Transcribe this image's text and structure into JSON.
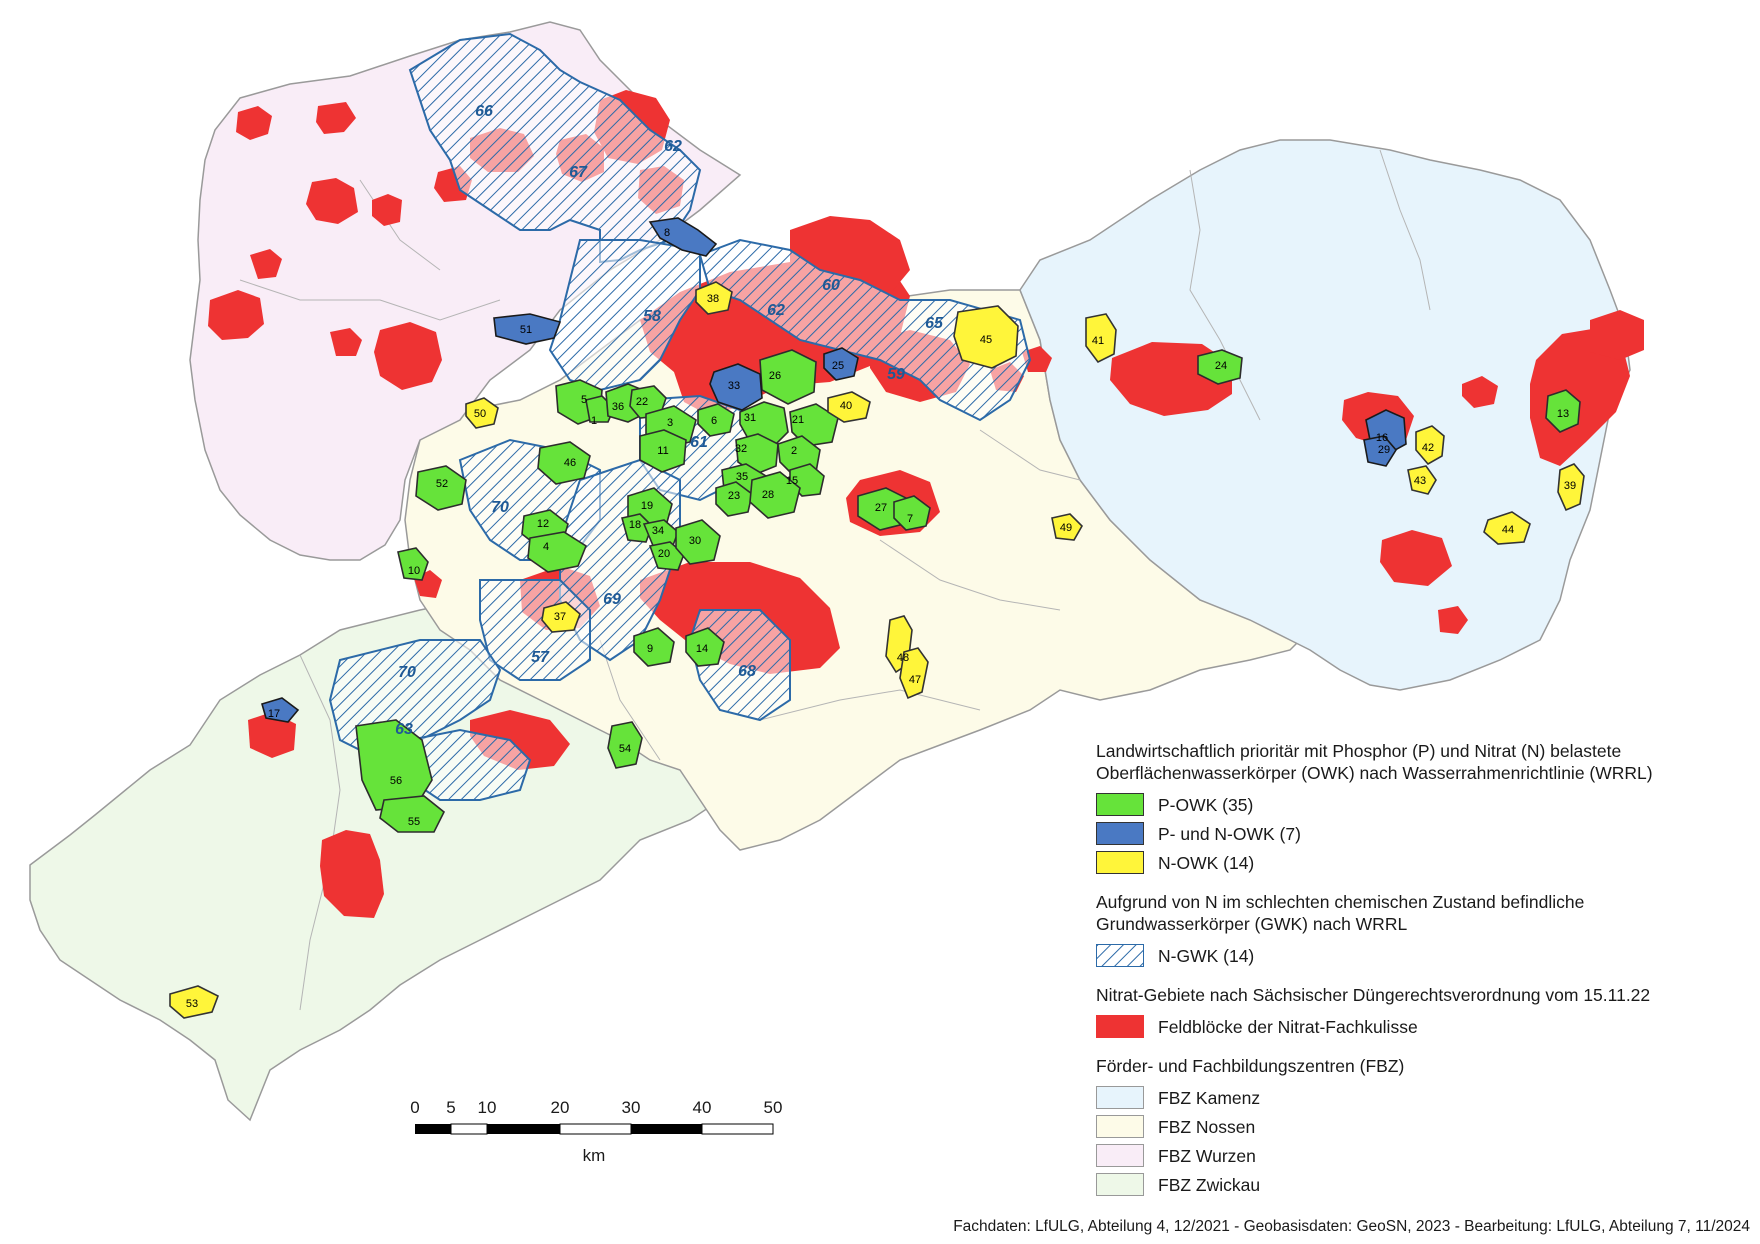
{
  "legend": {
    "owk_title": "Landwirtschaftlich prioritär mit Phosphor (P) und Nitrat (N) belastete Oberflächenwasserkörper (OWK) nach Wasserrahmenrichtlinie (WRRL)",
    "owk_items": [
      {
        "label": "P-OWK (35)",
        "color": "#66e33a"
      },
      {
        "label": "P- und N-OWK (7)",
        "color": "#4a79c3"
      },
      {
        "label": "N-OWK (14)",
        "color": "#fff53a"
      }
    ],
    "gwk_title": "Aufgrund von N im schlechten chemischen Zustand befindliche Grundwasserkörper (GWK) nach WRRL",
    "gwk_items": [
      {
        "label": "N-GWK (14)",
        "color": "#2c6aa8"
      }
    ],
    "nitrat_title": "Nitrat-Gebiete nach Sächsischer Düngerechtsverordnung vom 15.11.22",
    "nitrat_items": [
      {
        "label": "Feldblöcke der Nitrat-Fachkulisse",
        "color": "#ee3333"
      }
    ],
    "fbz_title": "Förder- und Fachbildungszentren (FBZ)",
    "fbz_items": [
      {
        "label": "FBZ Kamenz",
        "color": "#e7f4fc"
      },
      {
        "label": "FBZ Nossen",
        "color": "#fdfbe8"
      },
      {
        "label": "FBZ Wurzen",
        "color": "#f9edf7"
      },
      {
        "label": "FBZ Zwickau",
        "color": "#eef8e8"
      }
    ]
  },
  "scalebar": {
    "ticks": [
      "0",
      "5",
      "10",
      "20",
      "30",
      "40",
      "50"
    ],
    "unit": "km"
  },
  "footer": "Fachdaten: LfULG, Abteilung 4, 12/2021 - Geobasisdaten: GeoSN, 2023 - Bearbeitung: LfULG, Abteilung 7, 11/2024",
  "gwk_labels": [
    "66",
    "67",
    "62",
    "58",
    "62",
    "60",
    "65",
    "59",
    "61",
    "70",
    "69",
    "57",
    "68",
    "70",
    "63"
  ],
  "owk_labels": {
    "p": [
      "5",
      "1",
      "36",
      "22",
      "3",
      "6",
      "11",
      "31",
      "26",
      "21",
      "32",
      "2",
      "35",
      "15",
      "23",
      "28",
      "46",
      "52",
      "12",
      "4",
      "10",
      "19",
      "18",
      "34",
      "20",
      "30",
      "9",
      "14",
      "27",
      "7",
      "24",
      "13",
      "54",
      "56",
      "55"
    ],
    "pn": [
      "8",
      "51",
      "33",
      "25",
      "16",
      "29",
      "17"
    ],
    "n": [
      "38",
      "45",
      "40",
      "50",
      "41",
      "42",
      "43",
      "39",
      "44",
      "49",
      "37",
      "48",
      "47",
      "53"
    ]
  }
}
